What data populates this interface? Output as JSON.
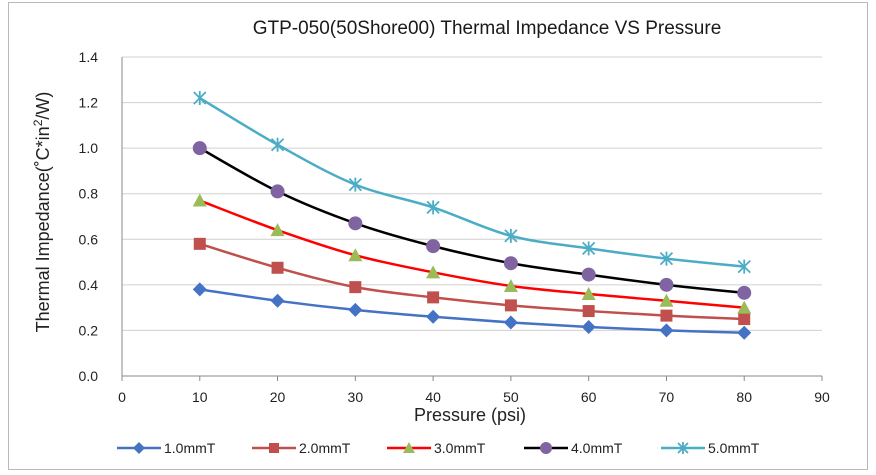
{
  "chart_data": {
    "type": "line",
    "title": "GTP-050(50Shore00) Thermal Impedance VS Pressure",
    "xlabel": "Pressure (psi)",
    "ylabel_main": "Thermal Impedance(",
    "ylabel_unit_a": "˚C*in",
    "ylabel_sup": "2",
    "ylabel_unit_b": "/W)",
    "xlim": [
      0,
      90
    ],
    "ylim": [
      0.0,
      1.4
    ],
    "x_ticks": [
      "0",
      "10",
      "20",
      "30",
      "40",
      "50",
      "60",
      "70",
      "80",
      "90"
    ],
    "y_ticks": [
      "0.0",
      "0.2",
      "0.4",
      "0.6",
      "0.8",
      "1.0",
      "1.2",
      "1.4"
    ],
    "grid": true,
    "legend_position": "bottom",
    "x": [
      10,
      20,
      30,
      40,
      50,
      60,
      70,
      80
    ],
    "series": [
      {
        "name": "1.0mmT",
        "color": "#4472C4",
        "marker": "diamond",
        "values": [
          0.38,
          0.33,
          0.29,
          0.26,
          0.235,
          0.215,
          0.2,
          0.19
        ]
      },
      {
        "name": "2.0mmT",
        "color": "#C0504D",
        "marker": "square",
        "values": [
          0.58,
          0.475,
          0.39,
          0.345,
          0.31,
          0.285,
          0.265,
          0.25
        ]
      },
      {
        "name": "3.0mmT",
        "color": "#FF0000",
        "marker": "triangle",
        "values": [
          0.77,
          0.64,
          0.53,
          0.455,
          0.395,
          0.36,
          0.33,
          0.3
        ]
      },
      {
        "name": "4.0mmT",
        "color": "#000000",
        "marker": "circle",
        "values": [
          1.0,
          0.81,
          0.67,
          0.57,
          0.495,
          0.445,
          0.4,
          0.365
        ]
      },
      {
        "name": "5.0mmT",
        "color": "#4BACC6",
        "marker": "star",
        "values": [
          1.22,
          1.015,
          0.84,
          0.74,
          0.615,
          0.56,
          0.515,
          0.48
        ]
      }
    ]
  }
}
